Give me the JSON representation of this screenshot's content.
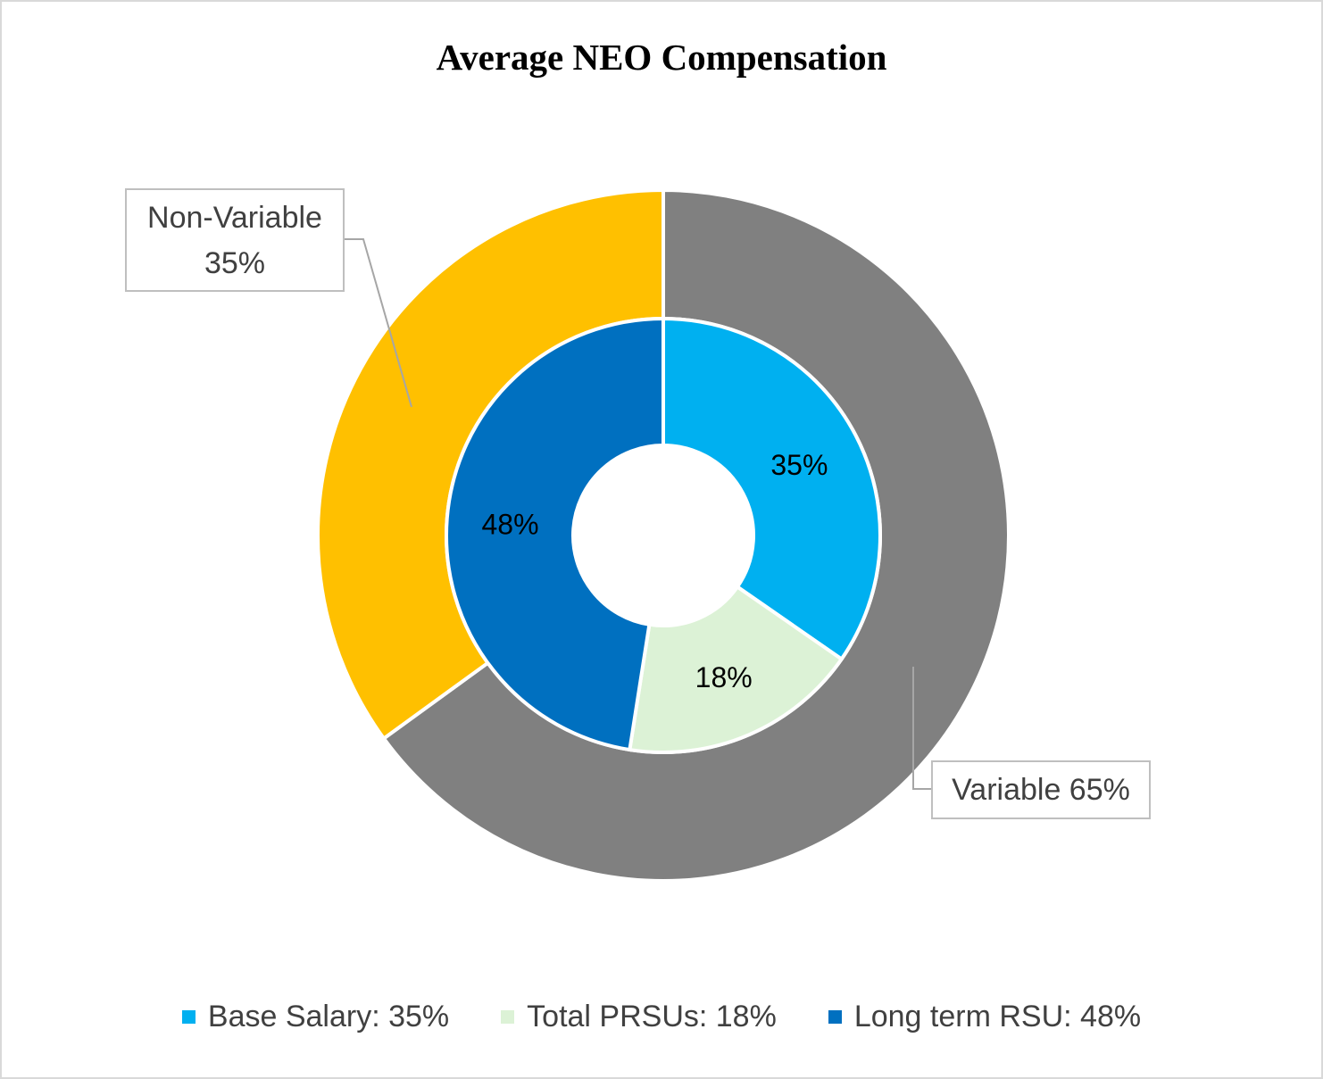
{
  "chart_data": {
    "type": "pie",
    "subtype": "nested-donut",
    "title": "Average NEO Compensation",
    "outer_ring": {
      "slices": [
        {
          "label": "Variable",
          "value": 65,
          "color": "#808080",
          "display": "Variable 65%"
        },
        {
          "label": "Non-Variable",
          "value": 35,
          "color": "#ffc000",
          "display_line1": "Non-Variable",
          "display_line2": "35%"
        }
      ]
    },
    "inner_ring": {
      "slices": [
        {
          "label": "Base Salary",
          "value": 35,
          "color": "#00b0f0",
          "display": "35%"
        },
        {
          "label": "Total PRSUs",
          "value": 18,
          "color": "#dcf2d6",
          "display": "18%"
        },
        {
          "label": "Long term RSU",
          "value": 48,
          "color": "#0070c0",
          "display": "48%"
        }
      ]
    },
    "legend": {
      "position": "bottom",
      "entries": [
        {
          "text": "Base Salary: 35%",
          "color": "#00b0f0"
        },
        {
          "text": "Total PRSUs: 18%",
          "color": "#dcf2d6"
        },
        {
          "text": "Long term RSU: 48%",
          "color": "#0070c0"
        }
      ]
    }
  }
}
